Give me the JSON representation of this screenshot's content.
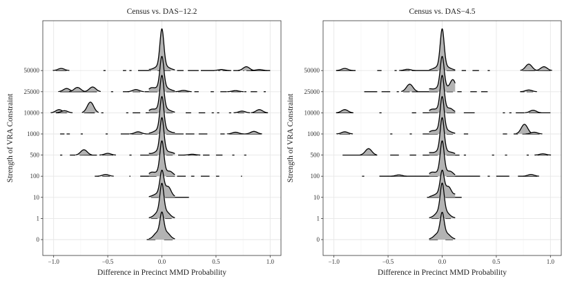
{
  "chart_data": [
    {
      "type": "ridgeline",
      "title": "Census vs. DAS−12.2",
      "xlabel": "Difference in Precinct MMD Probability",
      "ylabel": "Strength of VRA Constraint",
      "xlim": [
        -1.1,
        1.1
      ],
      "x_ticks": [
        -1.0,
        -0.5,
        0.0,
        0.5,
        1.0
      ],
      "x_tick_labels": [
        "−1.0",
        "−0.5",
        "0.0",
        "0.5",
        "1.0"
      ],
      "categories": [
        "0",
        "1",
        "10",
        "100",
        "500",
        "1000",
        "10000",
        "25000",
        "50000"
      ],
      "series": [
        {
          "name": "0",
          "peak": {
            "x": 0.0,
            "height": 1.0
          },
          "segments": [
            [
              -0.14,
              -0.06
            ],
            [
              0.02,
              0.1
            ]
          ],
          "bumps": [
            [
              -0.05,
              0.15
            ],
            [
              0.05,
              0.15
            ]
          ]
        },
        {
          "name": "1",
          "peak": {
            "x": 0.0,
            "height": 1.35
          },
          "segments": [
            [
              -0.1,
              -0.04
            ],
            [
              0.03,
              0.09
            ]
          ],
          "bumps": [
            [
              -0.04,
              0.1
            ],
            [
              0.05,
              0.12
            ]
          ]
        },
        {
          "name": "10",
          "peak": {
            "x": 0.0,
            "height": 1.0
          },
          "segments": [
            [
              -0.1,
              -0.03
            ],
            [
              0.03,
              0.25
            ]
          ],
          "bumps": [
            [
              0.06,
              0.35
            ],
            [
              0.18,
              0.2
            ]
          ]
        },
        {
          "name": "100",
          "peak": {
            "x": 0.0,
            "height": 1.4
          },
          "segments": [
            [
              -0.62,
              -0.58
            ],
            [
              -0.55,
              -0.48
            ],
            [
              -0.3,
              -0.29
            ],
            [
              -0.2,
              -0.05
            ],
            [
              0.04,
              0.12
            ],
            [
              0.14,
              0.22
            ],
            [
              0.27,
              0.3
            ],
            [
              0.36,
              0.44
            ],
            [
              0.5,
              0.53
            ],
            [
              0.73,
              0.74
            ]
          ],
          "bumps": [
            [
              -0.52,
              0.08
            ],
            [
              -0.1,
              0.12
            ],
            [
              0.08,
              0.12
            ],
            [
              0.18,
              0.06
            ]
          ]
        },
        {
          "name": "500",
          "peak": {
            "x": 0.0,
            "height": 1.5
          },
          "segments": [
            [
              -0.94,
              -0.92
            ],
            [
              -0.85,
              -0.8
            ],
            [
              -0.76,
              -0.6
            ],
            [
              -0.55,
              -0.45
            ],
            [
              -0.3,
              -0.28
            ],
            [
              -0.2,
              -0.04
            ],
            [
              0.04,
              0.1
            ],
            [
              0.15,
              0.21
            ],
            [
              0.24,
              0.33
            ],
            [
              0.38,
              0.44
            ],
            [
              0.5,
              0.56
            ],
            [
              0.65,
              0.67
            ],
            [
              0.76,
              0.78
            ]
          ],
          "bumps": [
            [
              -0.72,
              0.25
            ],
            [
              -0.5,
              0.08
            ],
            [
              -0.15,
              0.1
            ],
            [
              0.1,
              0.05
            ],
            [
              0.28,
              0.04
            ]
          ]
        },
        {
          "name": "1000",
          "peak": {
            "x": 0.0,
            "height": 1.5
          },
          "segments": [
            [
              -0.94,
              -0.9
            ],
            [
              -0.88,
              -0.85
            ],
            [
              -0.75,
              -0.73
            ],
            [
              -0.52,
              -0.5
            ],
            [
              -0.38,
              -0.3
            ],
            [
              -0.28,
              -0.18
            ],
            [
              -0.15,
              -0.04
            ],
            [
              0.04,
              0.2
            ],
            [
              0.22,
              0.3
            ],
            [
              0.34,
              0.42
            ],
            [
              0.54,
              0.58
            ],
            [
              0.62,
              0.92
            ]
          ],
          "bumps": [
            [
              -0.22,
              0.1
            ],
            [
              0.15,
              0.05
            ],
            [
              0.68,
              0.08
            ],
            [
              0.85,
              0.12
            ]
          ]
        },
        {
          "name": "10000",
          "peak": {
            "x": 0.0,
            "height": 1.5
          },
          "segments": [
            [
              -0.98,
              -0.88
            ],
            [
              -0.72,
              -0.62
            ],
            [
              -0.56,
              -0.54
            ],
            [
              -0.33,
              -0.31
            ],
            [
              -0.27,
              -0.2
            ],
            [
              -0.15,
              -0.04
            ],
            [
              0.04,
              0.1
            ],
            [
              0.22,
              0.27
            ],
            [
              0.34,
              0.4
            ],
            [
              0.46,
              0.48
            ],
            [
              0.51,
              0.53
            ],
            [
              0.62,
              0.64
            ],
            [
              0.7,
              0.76
            ],
            [
              0.84,
              0.98
            ]
          ],
          "bumps": [
            [
              -0.95,
              0.15
            ],
            [
              -0.9,
              0.1
            ],
            [
              -0.66,
              0.5
            ],
            [
              -0.1,
              0.1
            ],
            [
              0.74,
              0.08
            ],
            [
              0.9,
              0.15
            ]
          ]
        },
        {
          "name": "25000",
          "peak": {
            "x": 0.0,
            "height": 1.4
          },
          "segments": [
            [
              -0.94,
              -0.6
            ],
            [
              -0.47,
              -0.45
            ],
            [
              -0.36,
              -0.3
            ],
            [
              -0.27,
              -0.2
            ],
            [
              -0.16,
              -0.04
            ],
            [
              0.04,
              0.12
            ],
            [
              0.15,
              0.25
            ],
            [
              0.3,
              0.34
            ],
            [
              0.45,
              0.48
            ],
            [
              0.54,
              0.6
            ],
            [
              0.64,
              0.73
            ],
            [
              0.76,
              0.78
            ],
            [
              0.82,
              0.88
            ],
            [
              0.94,
              0.96
            ]
          ],
          "bumps": [
            [
              -0.88,
              0.15
            ],
            [
              -0.78,
              0.2
            ],
            [
              -0.64,
              0.22
            ],
            [
              -0.24,
              0.1
            ],
            [
              -0.1,
              0.12
            ],
            [
              0.2,
              0.06
            ],
            [
              0.68,
              0.05
            ]
          ]
        },
        {
          "name": "50000",
          "peak": {
            "x": 0.0,
            "height": 1.7
          },
          "segments": [
            [
              -0.98,
              -0.88
            ],
            [
              -0.54,
              -0.52
            ],
            [
              -0.36,
              -0.33
            ],
            [
              -0.3,
              -0.28
            ],
            [
              -0.22,
              -0.1
            ],
            [
              -0.04,
              -0.02
            ],
            [
              0.02,
              0.08
            ],
            [
              0.14,
              0.2
            ],
            [
              0.24,
              0.34
            ],
            [
              0.36,
              0.48
            ],
            [
              0.52,
              0.54
            ],
            [
              0.56,
              0.64
            ],
            [
              0.66,
              0.72
            ],
            [
              0.75,
              0.76
            ],
            [
              0.78,
              1.0
            ]
          ],
          "bumps": [
            [
              -0.93,
              0.1
            ],
            [
              -0.16,
              0.08
            ],
            [
              0.55,
              0.05
            ],
            [
              0.78,
              0.18
            ],
            [
              0.9,
              0.05
            ]
          ]
        }
      ]
    },
    {
      "type": "ridgeline",
      "title": "Census vs. DAS−4.5",
      "xlabel": "Difference in Precinct MMD Probability",
      "ylabel": "Strength of VRA Constraint",
      "xlim": [
        -1.1,
        1.1
      ],
      "x_ticks": [
        -1.0,
        -0.5,
        0.0,
        0.5,
        1.0
      ],
      "x_tick_labels": [
        "−1.0",
        "−0.5",
        "0.0",
        "0.5",
        "1.0"
      ],
      "categories": [
        "0",
        "1",
        "10",
        "100",
        "500",
        "1000",
        "10000",
        "25000",
        "50000"
      ],
      "series": [
        {
          "name": "0",
          "peak": {
            "x": 0.0,
            "height": 1.0
          },
          "segments": [
            [
              -0.12,
              -0.04
            ],
            [
              0.03,
              0.1
            ]
          ],
          "bumps": [
            [
              -0.05,
              0.1
            ],
            [
              0.05,
              0.1
            ]
          ]
        },
        {
          "name": "1",
          "peak": {
            "x": 0.0,
            "height": 1.35
          },
          "segments": [
            [
              -0.1,
              -0.03
            ],
            [
              0.03,
              0.08
            ]
          ],
          "bumps": [
            [
              -0.04,
              0.1
            ],
            [
              0.04,
              0.1
            ]
          ]
        },
        {
          "name": "10",
          "peak": {
            "x": 0.0,
            "height": 1.0
          },
          "segments": [
            [
              -0.14,
              -0.03
            ],
            [
              0.03,
              0.18
            ]
          ],
          "bumps": [
            [
              0.06,
              0.35
            ],
            [
              0.14,
              0.15
            ]
          ]
        },
        {
          "name": "100",
          "peak": {
            "x": 0.0,
            "height": 1.4
          },
          "segments": [
            [
              -0.74,
              -0.72
            ],
            [
              -0.58,
              -0.04
            ],
            [
              0.04,
              0.35
            ],
            [
              0.42,
              0.44
            ],
            [
              0.5,
              0.62
            ],
            [
              0.7,
              0.88
            ]
          ],
          "bumps": [
            [
              -0.4,
              0.06
            ],
            [
              -0.1,
              0.12
            ],
            [
              0.08,
              0.12
            ],
            [
              0.82,
              0.08
            ]
          ]
        },
        {
          "name": "500",
          "peak": {
            "x": 0.0,
            "height": 1.5
          },
          "segments": [
            [
              -0.92,
              -0.6
            ],
            [
              -0.48,
              -0.4
            ],
            [
              -0.3,
              -0.24
            ],
            [
              -0.18,
              -0.04
            ],
            [
              0.04,
              0.16
            ],
            [
              0.2,
              0.22
            ],
            [
              0.46,
              0.48
            ],
            [
              0.58,
              0.6
            ],
            [
              0.78,
              0.8
            ],
            [
              0.88,
              0.98
            ]
          ],
          "bumps": [
            [
              -0.68,
              0.3
            ],
            [
              -0.12,
              0.08
            ],
            [
              0.1,
              0.05
            ],
            [
              0.93,
              0.06
            ]
          ]
        },
        {
          "name": "1000",
          "peak": {
            "x": 0.0,
            "height": 1.5
          },
          "segments": [
            [
              -0.95,
              -0.85
            ],
            [
              -0.48,
              -0.46
            ],
            [
              -0.3,
              -0.28
            ],
            [
              -0.18,
              -0.04
            ],
            [
              0.04,
              0.1
            ],
            [
              0.2,
              0.24
            ],
            [
              0.56,
              0.6
            ],
            [
              0.66,
              0.7
            ],
            [
              0.74,
              0.9
            ]
          ],
          "bumps": [
            [
              -0.9,
              0.1
            ],
            [
              -0.1,
              0.08
            ],
            [
              0.76,
              0.45
            ],
            [
              0.85,
              0.08
            ]
          ]
        },
        {
          "name": "10000",
          "peak": {
            "x": 0.0,
            "height": 1.5
          },
          "segments": [
            [
              -0.98,
              -0.82
            ],
            [
              -0.58,
              -0.56
            ],
            [
              -0.28,
              -0.24
            ],
            [
              -0.18,
              -0.04
            ],
            [
              0.04,
              0.12
            ],
            [
              0.2,
              0.3
            ],
            [
              0.56,
              0.58
            ],
            [
              0.62,
              0.64
            ],
            [
              0.68,
              0.76
            ],
            [
              0.8,
              1.0
            ]
          ],
          "bumps": [
            [
              -0.9,
              0.15
            ],
            [
              -0.1,
              0.1
            ],
            [
              0.08,
              0.1
            ],
            [
              0.84,
              0.12
            ]
          ]
        },
        {
          "name": "25000",
          "peak": {
            "x": 0.0,
            "height": 1.4
          },
          "segments": [
            [
              -0.72,
              -0.6
            ],
            [
              -0.56,
              -0.48
            ],
            [
              -0.42,
              -0.4
            ],
            [
              -0.36,
              -0.3
            ],
            [
              -0.28,
              -0.04
            ],
            [
              0.04,
              0.1
            ],
            [
              0.14,
              0.18
            ],
            [
              0.26,
              0.32
            ],
            [
              0.36,
              0.42
            ],
            [
              0.72,
              0.76
            ],
            [
              0.78,
              0.84
            ]
          ],
          "bumps": [
            [
              -0.3,
              0.35
            ],
            [
              -0.12,
              0.1
            ],
            [
              0.1,
              0.5
            ],
            [
              0.8,
              0.08
            ]
          ]
        },
        {
          "name": "50000",
          "peak": {
            "x": 0.0,
            "height": 1.7
          },
          "segments": [
            [
              -0.98,
              -0.8
            ],
            [
              -0.6,
              -0.56
            ],
            [
              -0.44,
              -0.42
            ],
            [
              -0.38,
              -0.3
            ],
            [
              -0.28,
              -0.04
            ],
            [
              0.04,
              0.12
            ],
            [
              0.18,
              0.22
            ],
            [
              0.28,
              0.34
            ],
            [
              0.42,
              0.44
            ],
            [
              0.74,
              0.86
            ],
            [
              0.88,
              1.0
            ]
          ],
          "bumps": [
            [
              -0.9,
              0.1
            ],
            [
              -0.32,
              0.06
            ],
            [
              0.8,
              0.3
            ],
            [
              0.94,
              0.18
            ]
          ]
        }
      ]
    }
  ]
}
